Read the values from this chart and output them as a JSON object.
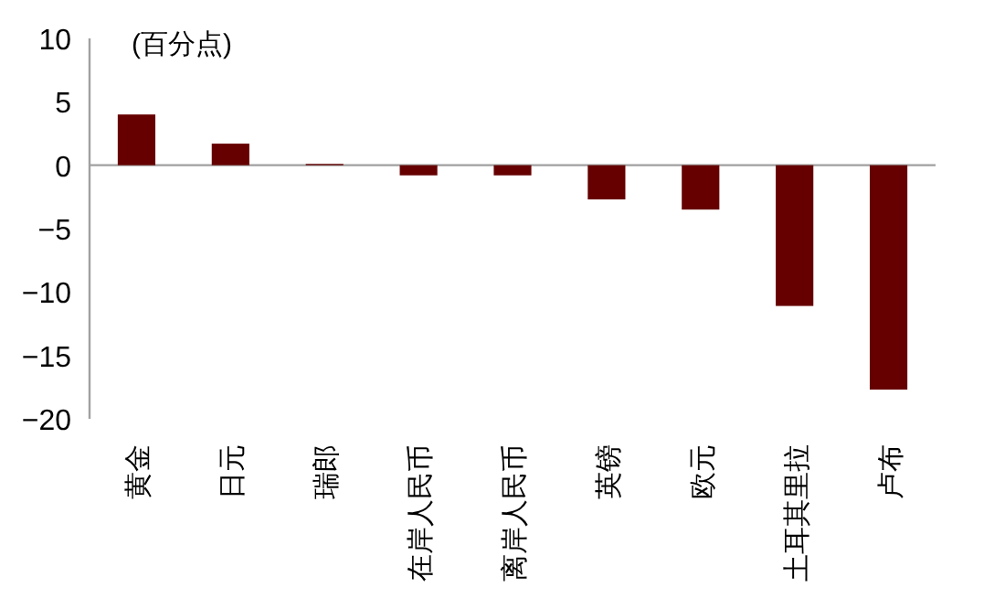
{
  "chart_data": {
    "type": "bar",
    "annotations": [
      "(百分点)"
    ],
    "categories": [
      "黄金",
      "日元",
      "瑞郎",
      "在岸人民币",
      "离岸人民币",
      "英镑",
      "欧元",
      "土耳其里拉",
      "卢布"
    ],
    "values": [
      4.0,
      1.7,
      0.1,
      -0.8,
      -0.8,
      -2.7,
      -3.5,
      -11.1,
      -17.7
    ],
    "color": "#660000",
    "ylim": [
      -20,
      10
    ],
    "yticks": [
      -20,
      -15,
      -10,
      -5,
      0,
      5,
      10
    ]
  }
}
